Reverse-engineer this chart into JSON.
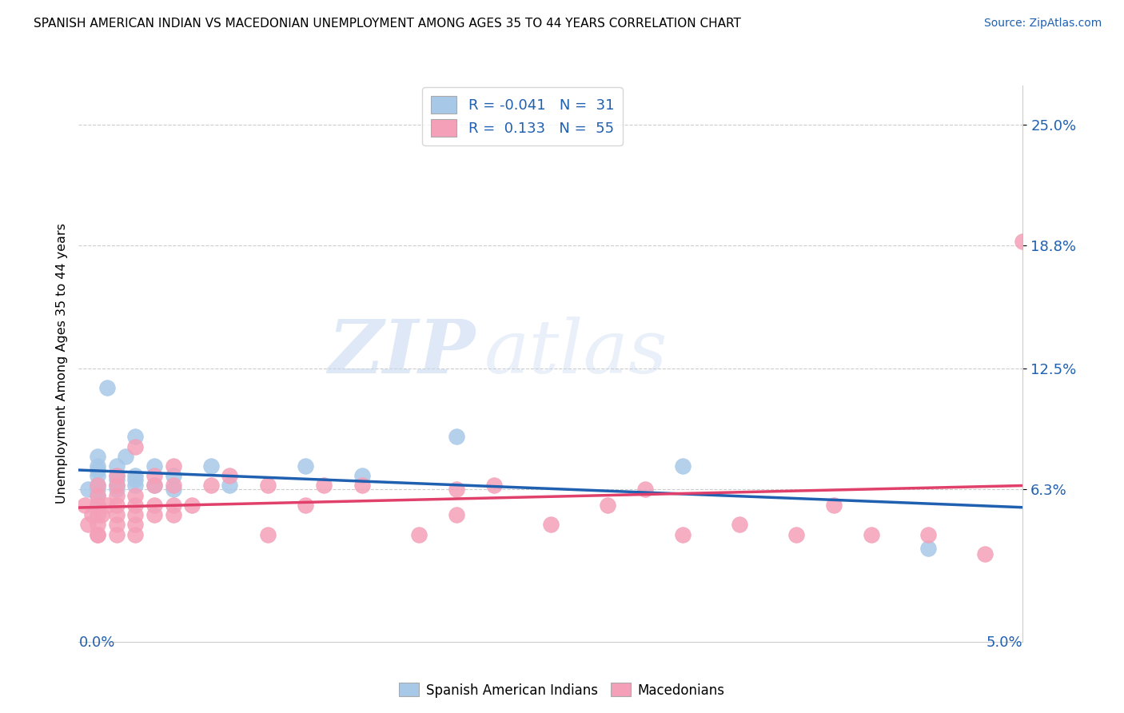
{
  "title": "SPANISH AMERICAN INDIAN VS MACEDONIAN UNEMPLOYMENT AMONG AGES 35 TO 44 YEARS CORRELATION CHART",
  "source": "Source: ZipAtlas.com",
  "ylabel": "Unemployment Among Ages 35 to 44 years",
  "y_tick_labels": [
    "6.3%",
    "12.5%",
    "18.8%",
    "25.0%"
  ],
  "y_tick_values": [
    0.063,
    0.125,
    0.188,
    0.25
  ],
  "x_range": [
    0.0,
    0.05
  ],
  "y_range": [
    -0.015,
    0.27
  ],
  "color_blue": "#a8c8e8",
  "color_pink": "#f4a0b8",
  "color_blue_line": "#2060b0",
  "color_pink_line": "#e0406a",
  "watermark_zip": "ZIP",
  "watermark_atlas": "atlas",
  "blue_x": [
    0.0005,
    0.001,
    0.001,
    0.001,
    0.001,
    0.001,
    0.001,
    0.001,
    0.001,
    0.0015,
    0.002,
    0.002,
    0.002,
    0.002,
    0.002,
    0.0025,
    0.003,
    0.003,
    0.003,
    0.003,
    0.004,
    0.004,
    0.005,
    0.005,
    0.007,
    0.008,
    0.012,
    0.015,
    0.02,
    0.032,
    0.045
  ],
  "blue_y": [
    0.063,
    0.055,
    0.06,
    0.065,
    0.07,
    0.073,
    0.075,
    0.08,
    0.063,
    0.115,
    0.063,
    0.065,
    0.068,
    0.07,
    0.075,
    0.08,
    0.065,
    0.068,
    0.07,
    0.09,
    0.065,
    0.075,
    0.063,
    0.07,
    0.075,
    0.065,
    0.075,
    0.07,
    0.09,
    0.075,
    0.033
  ],
  "pink_x": [
    0.0003,
    0.0005,
    0.0007,
    0.001,
    0.001,
    0.001,
    0.001,
    0.001,
    0.001,
    0.001,
    0.0012,
    0.0015,
    0.002,
    0.002,
    0.002,
    0.002,
    0.002,
    0.002,
    0.002,
    0.003,
    0.003,
    0.003,
    0.003,
    0.003,
    0.003,
    0.004,
    0.004,
    0.004,
    0.004,
    0.005,
    0.005,
    0.005,
    0.005,
    0.006,
    0.007,
    0.008,
    0.01,
    0.01,
    0.012,
    0.013,
    0.015,
    0.018,
    0.02,
    0.02,
    0.022,
    0.025,
    0.028,
    0.03,
    0.032,
    0.035,
    0.038,
    0.04,
    0.042,
    0.045,
    0.048,
    0.05
  ],
  "pink_y": [
    0.055,
    0.045,
    0.05,
    0.04,
    0.045,
    0.05,
    0.055,
    0.06,
    0.065,
    0.04,
    0.05,
    0.055,
    0.045,
    0.05,
    0.055,
    0.06,
    0.065,
    0.07,
    0.04,
    0.04,
    0.045,
    0.05,
    0.055,
    0.06,
    0.085,
    0.05,
    0.055,
    0.065,
    0.07,
    0.05,
    0.055,
    0.065,
    0.075,
    0.055,
    0.065,
    0.07,
    0.04,
    0.065,
    0.055,
    0.065,
    0.065,
    0.04,
    0.05,
    0.063,
    0.065,
    0.045,
    0.055,
    0.063,
    0.04,
    0.045,
    0.04,
    0.055,
    0.04,
    0.04,
    0.03,
    0.19
  ]
}
